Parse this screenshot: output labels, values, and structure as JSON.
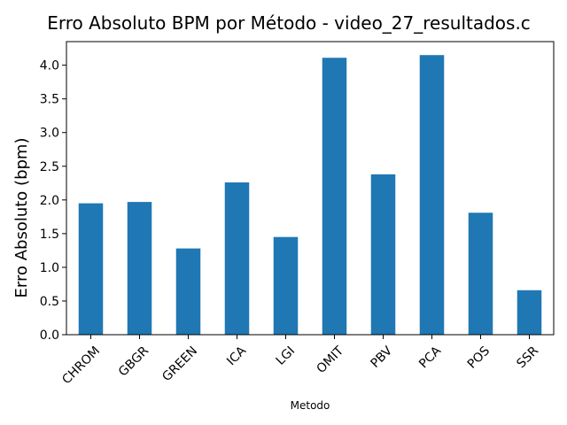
{
  "chart_data": {
    "type": "bar",
    "title": "Erro Absoluto BPM por Método - video_27_resultados.c",
    "xlabel": "Metodo",
    "ylabel": "Erro Absoluto (bpm)",
    "categories": [
      "CHROM",
      "GBGR",
      "GREEN",
      "ICA",
      "LGI",
      "OMIT",
      "PBV",
      "PCA",
      "POS",
      "SSR"
    ],
    "values": [
      1.95,
      1.97,
      1.28,
      2.26,
      1.45,
      4.11,
      2.38,
      4.15,
      1.81,
      0.66
    ],
    "ylim": [
      0,
      4.35
    ],
    "yticks": [
      "0.0",
      "0.5",
      "1.0",
      "1.5",
      "2.0",
      "2.5",
      "3.0",
      "3.5",
      "4.0"
    ],
    "bar_color": "#1f77b4",
    "grid": false,
    "legend": "none"
  }
}
